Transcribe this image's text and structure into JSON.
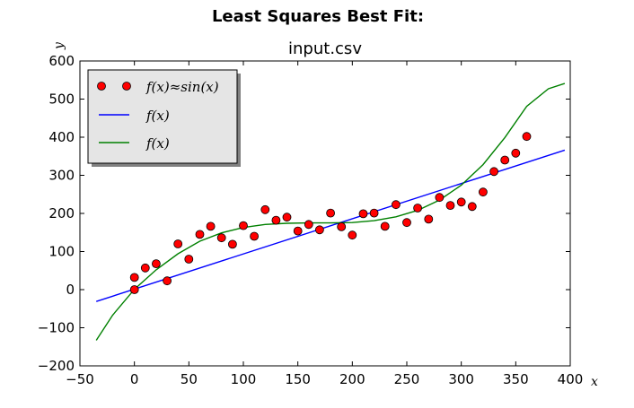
{
  "chart_data": {
    "type": "scatter",
    "suptitle": "Least Squares Best Fit:",
    "title": "input.csv",
    "xlabel": "x",
    "ylabel": "y",
    "xlim": [
      -50,
      400
    ],
    "ylim": [
      -200,
      600
    ],
    "xticks": [
      -50,
      0,
      50,
      100,
      150,
      200,
      250,
      300,
      350,
      400
    ],
    "yticks": [
      -200,
      -100,
      0,
      100,
      200,
      300,
      400,
      500,
      600
    ],
    "xtick_labels": [
      "−50",
      "0",
      "50",
      "100",
      "150",
      "200",
      "250",
      "300",
      "350",
      "400"
    ],
    "ytick_labels": [
      "−200",
      "−100",
      "0",
      "100",
      "200",
      "300",
      "400",
      "500",
      "600"
    ],
    "grid": false,
    "legend_position": "top-left",
    "series": [
      {
        "name": "f(x)≈sin(x)",
        "kind": "markers",
        "color": "#ff0000",
        "x": [
          0,
          0,
          10,
          20,
          30,
          40,
          50,
          60,
          70,
          80,
          90,
          100,
          110,
          120,
          130,
          140,
          150,
          160,
          170,
          180,
          190,
          200,
          210,
          220,
          230,
          240,
          250,
          260,
          270,
          280,
          290,
          300,
          310,
          320,
          330,
          340,
          350,
          360
        ],
        "y": [
          0,
          32,
          57,
          68,
          23,
          120,
          80,
          145,
          166,
          136,
          119,
          168,
          140,
          210,
          182,
          190,
          154,
          171,
          157,
          201,
          165,
          143,
          199,
          201,
          166,
          223,
          176,
          214,
          185,
          242,
          221,
          230,
          218,
          256,
          310,
          340,
          358,
          402
        ]
      },
      {
        "name": "f(x)",
        "kind": "line",
        "color": "#0000ff",
        "x": [
          -35,
          395
        ],
        "y": [
          -31,
          366
        ]
      },
      {
        "name": "f(x)",
        "kind": "line",
        "color": "#008000",
        "x": [
          -35,
          -20,
          0,
          20,
          40,
          60,
          80,
          100,
          120,
          140,
          160,
          180,
          200,
          220,
          240,
          260,
          280,
          300,
          320,
          340,
          360,
          380,
          395
        ],
        "y": [
          -133,
          -67,
          1,
          52,
          94,
          127,
          149,
          163,
          171,
          174,
          175,
          175,
          176,
          181,
          191,
          208,
          235,
          274,
          328,
          399,
          481,
          527,
          541
        ]
      }
    ]
  }
}
